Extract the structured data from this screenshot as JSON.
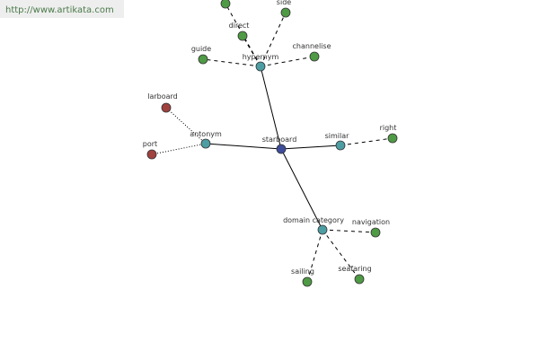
{
  "watermark": "http://www.artikata.com",
  "nodes": [
    {
      "label": "starboard"
    },
    {
      "label": "hypernym"
    },
    {
      "label": "antonym"
    },
    {
      "label": "similar"
    },
    {
      "label": "domain category"
    },
    {
      "label": "direct"
    },
    {
      "label": "side"
    },
    {
      "label": "guide"
    },
    {
      "label": "channelise"
    },
    {
      "label": "larboard"
    },
    {
      "label": "port"
    },
    {
      "label": "right"
    },
    {
      "label": "navigation"
    },
    {
      "label": "sailing"
    },
    {
      "label": "seafaring"
    }
  ]
}
